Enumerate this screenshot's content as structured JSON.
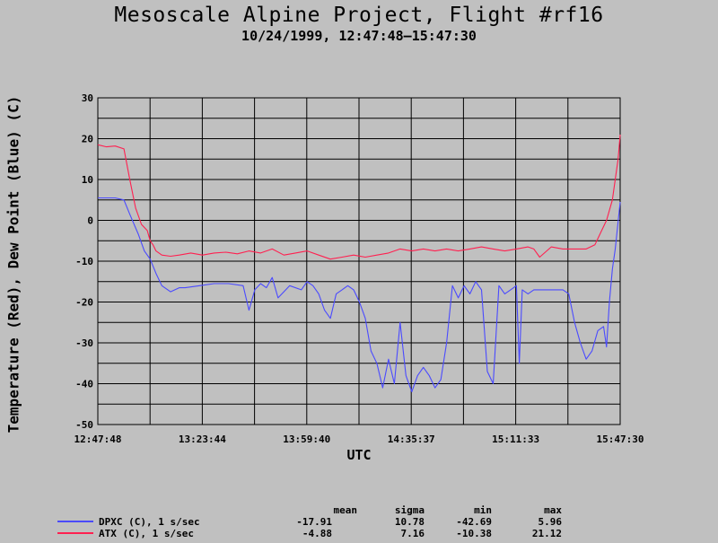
{
  "chart_data": {
    "type": "line",
    "title": "Mesoscale Alpine Project, Flight #rf16",
    "subtitle": "10/24/1999, 12:47:48–15:47:30",
    "xlabel": "UTC",
    "ylabel": "Temperature (Red), Dew Point (Blue) (C)",
    "x_ticks": [
      "12:47:48",
      "13:23:44",
      "13:59:40",
      "14:35:37",
      "15:11:33",
      "15:47:30"
    ],
    "x_range_minutes": [
      0,
      179.7
    ],
    "y_ticks": [
      30,
      20,
      10,
      0,
      -10,
      -20,
      -30,
      -40,
      -50
    ],
    "ylim": [
      -50,
      30
    ],
    "grid": true,
    "series": [
      {
        "name": "DPXC (C), 1 s/sec",
        "color": "#4a4aff",
        "x": [
          0,
          6,
          9,
          11,
          14,
          16,
          18,
          20,
          22,
          25,
          28,
          30,
          35,
          40,
          45,
          50,
          52,
          54,
          56,
          58,
          60,
          62,
          66,
          70,
          72,
          74,
          76,
          78,
          80,
          82,
          84,
          86,
          88,
          90,
          92,
          94,
          96,
          98,
          100,
          102,
          104,
          106,
          108,
          110,
          112,
          114,
          116,
          118,
          120,
          122,
          124,
          126,
          128,
          130,
          132,
          134,
          136,
          138,
          140,
          142,
          144,
          145,
          146,
          148,
          150,
          155,
          160,
          162,
          164,
          166,
          168,
          170,
          172,
          174,
          175,
          176,
          177,
          178,
          179.7
        ],
        "y": [
          5.5,
          5.5,
          5.0,
          1.5,
          -3.5,
          -7.5,
          -9.5,
          -13,
          -16,
          -17.5,
          -16.5,
          -16.5,
          -16,
          -15.5,
          -15.5,
          -16,
          -22,
          -17,
          -15.5,
          -16.5,
          -14,
          -19,
          -16,
          -17,
          -15,
          -16,
          -18,
          -22,
          -24,
          -18,
          -17,
          -16,
          -17,
          -20,
          -24,
          -32,
          -35,
          -41,
          -34,
          -40,
          -25,
          -38,
          -42,
          -38,
          -36,
          -38,
          -41,
          -39,
          -30,
          -16,
          -19,
          -16,
          -18,
          -15,
          -17,
          -37,
          -40,
          -16,
          -18,
          -17,
          -16,
          -35,
          -17,
          -18,
          -17,
          -17,
          -17,
          -18,
          -25,
          -30,
          -34,
          -32,
          -27,
          -26,
          -31,
          -20,
          -12,
          -7,
          4.5
        ]
      },
      {
        "name": "ATX (C), 1 s/sec",
        "color": "#ff2050",
        "x": [
          0,
          3,
          6,
          9,
          11,
          13,
          15,
          17,
          18,
          19,
          20,
          22,
          25,
          28,
          32,
          36,
          40,
          44,
          48,
          52,
          56,
          60,
          64,
          68,
          72,
          76,
          80,
          84,
          88,
          92,
          96,
          100,
          104,
          108,
          112,
          116,
          120,
          124,
          128,
          132,
          136,
          140,
          144,
          148,
          150,
          152,
          156,
          160,
          164,
          168,
          171,
          173,
          175,
          177,
          178,
          179,
          179.7
        ],
        "y": [
          18.5,
          18.0,
          18.2,
          17.5,
          10,
          3,
          -1,
          -2.5,
          -5,
          -6,
          -7.5,
          -8.5,
          -8.8,
          -8.5,
          -8,
          -8.5,
          -8,
          -7.8,
          -8.2,
          -7.5,
          -8,
          -7,
          -8.5,
          -8,
          -7.5,
          -8.5,
          -9.5,
          -9,
          -8.5,
          -9,
          -8.5,
          -8,
          -7,
          -7.5,
          -7,
          -7.5,
          -7,
          -7.5,
          -7,
          -6.5,
          -7,
          -7.5,
          -7,
          -6.5,
          -7,
          -9,
          -6.5,
          -7,
          -7,
          -7,
          -6,
          -3,
          0,
          5,
          10,
          15,
          21
        ]
      }
    ],
    "stats": {
      "headers": [
        "mean",
        "sigma",
        "min",
        "max"
      ],
      "rows": [
        {
          "label": "DPXC (C), 1 s/sec",
          "mean": "-17.91",
          "sigma": "10.78",
          "min": "-42.69",
          "max": "5.96",
          "color": "#4a4aff"
        },
        {
          "label": "ATX (C), 1 s/sec",
          "mean": "-4.88",
          "sigma": "7.16",
          "min": "-10.38",
          "max": "21.12",
          "color": "#ff2050"
        }
      ]
    }
  }
}
